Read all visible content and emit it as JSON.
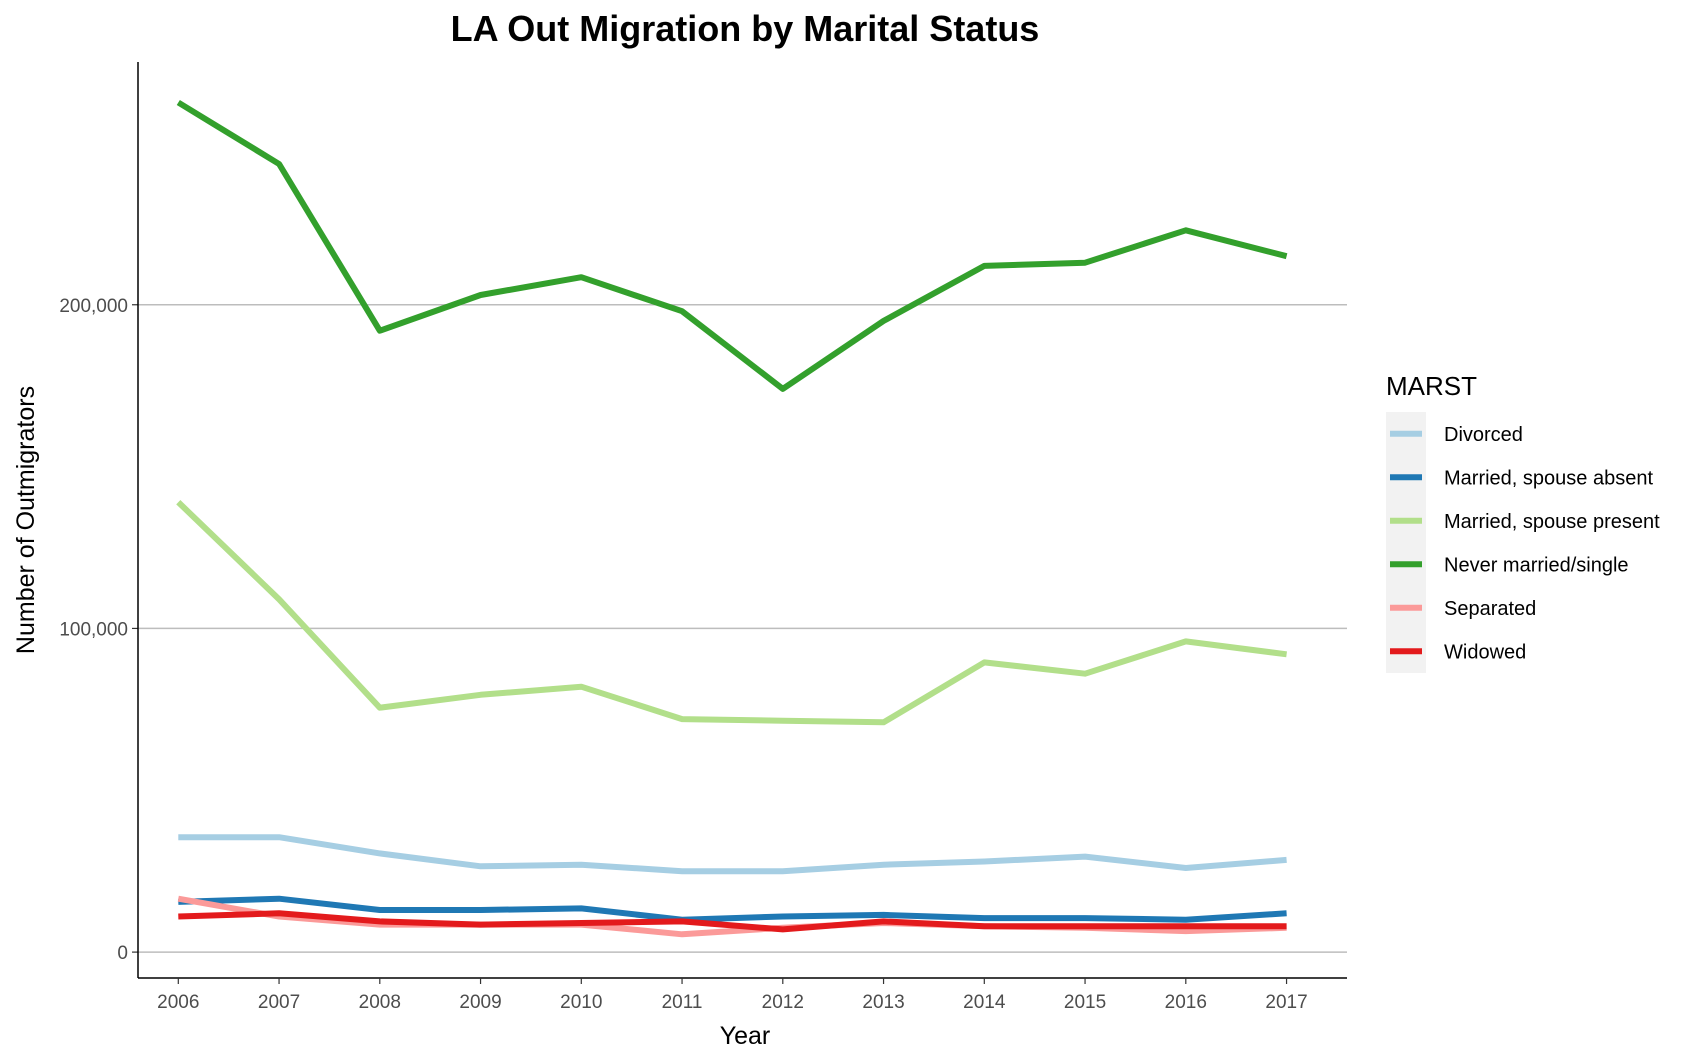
{
  "chart_data": {
    "type": "line",
    "title": "LA Out Migration by Marital Status",
    "xlabel": "Year",
    "ylabel": "Number of Outmigrators",
    "x": [
      2006,
      2007,
      2008,
      2009,
      2010,
      2011,
      2012,
      2013,
      2014,
      2015,
      2016,
      2017
    ],
    "xticks": [
      "2006",
      "2007",
      "2008",
      "2009",
      "2010",
      "2011",
      "2012",
      "2013",
      "2014",
      "2015",
      "2016",
      "2017"
    ],
    "yticks": [
      {
        "value": 0,
        "label": "0"
      },
      {
        "value": 100000,
        "label": "100,000"
      },
      {
        "value": 200000,
        "label": "200,000"
      }
    ],
    "xlim": [
      2005.6,
      2017.6
    ],
    "ylim": [
      -8000,
      275000
    ],
    "grid": "horizontal major",
    "legend": {
      "title": "MARST",
      "position": "right"
    },
    "series": [
      {
        "name": "Divorced",
        "color": "#a6cee3",
        "values": [
          35500,
          35500,
          30500,
          26500,
          27000,
          25000,
          25000,
          27000,
          28000,
          29500,
          26000,
          28500
        ]
      },
      {
        "name": "Married, spouse absent",
        "color": "#1f78b4",
        "values": [
          15500,
          16500,
          13000,
          13000,
          13500,
          10000,
          11000,
          11500,
          10500,
          10500,
          10000,
          12000
        ]
      },
      {
        "name": "Married, spouse present",
        "color": "#b2df8a",
        "values": [
          139000,
          109000,
          75500,
          79500,
          82000,
          72000,
          71500,
          71000,
          89500,
          86000,
          96000,
          92000
        ]
      },
      {
        "name": "Never married/single",
        "color": "#33a02c",
        "values": [
          262500,
          243500,
          192000,
          203000,
          208500,
          198000,
          174000,
          195000,
          212000,
          213000,
          223000,
          215000
        ]
      },
      {
        "name": "Separated",
        "color": "#fb9a99",
        "values": [
          16500,
          11000,
          8500,
          8500,
          8500,
          5500,
          7500,
          9000,
          8000,
          7500,
          6500,
          7500
        ]
      },
      {
        "name": "Widowed",
        "color": "#e31a1c",
        "values": [
          11000,
          12000,
          9500,
          8500,
          9000,
          9500,
          7000,
          9500,
          8000,
          8000,
          8000,
          8000
        ]
      }
    ]
  }
}
